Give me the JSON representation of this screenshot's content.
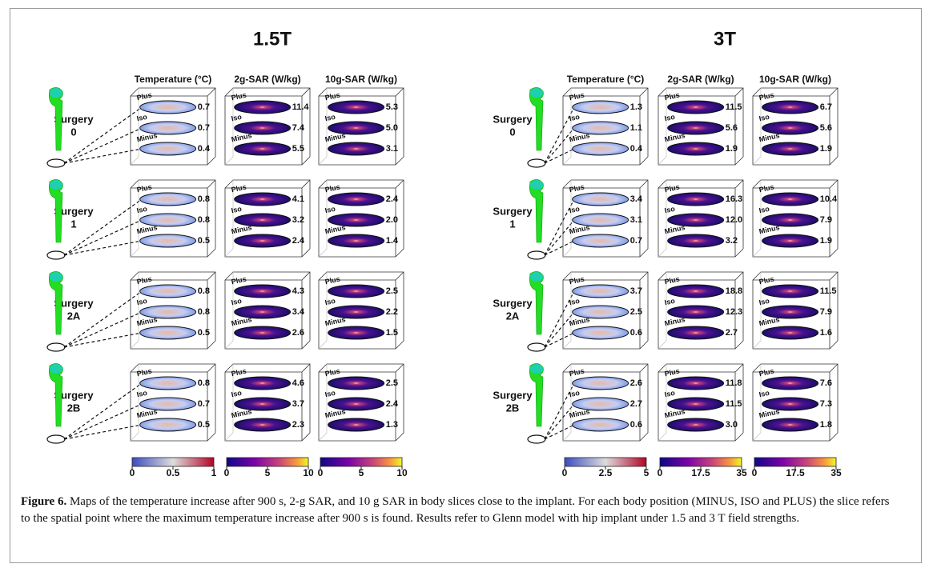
{
  "panels": [
    {
      "title": "1.5T",
      "columns": [
        "Temperature (°C)",
        "2g-SAR (W/kg)",
        "10g-SAR (W/kg)"
      ],
      "rows": [
        {
          "label": "Surgery",
          "id": "0",
          "values": [
            [
              "0.7",
              "0.7",
              "0.4"
            ],
            [
              "11.4",
              "7.4",
              "5.5"
            ],
            [
              "5.3",
              "5.0",
              "3.1"
            ]
          ]
        },
        {
          "label": "Surgery",
          "id": "1",
          "values": [
            [
              "0.8",
              "0.8",
              "0.5"
            ],
            [
              "4.1",
              "3.2",
              "2.4"
            ],
            [
              "2.4",
              "2.0",
              "1.4"
            ]
          ]
        },
        {
          "label": "Surgery",
          "id": "2A",
          "values": [
            [
              "0.8",
              "0.8",
              "0.5"
            ],
            [
              "4.3",
              "3.4",
              "2.6"
            ],
            [
              "2.5",
              "2.2",
              "1.5"
            ]
          ]
        },
        {
          "label": "Surgery",
          "id": "2B",
          "values": [
            [
              "0.8",
              "0.7",
              "0.5"
            ],
            [
              "4.6",
              "3.7",
              "2.3"
            ],
            [
              "2.5",
              "2.4",
              "1.3"
            ]
          ]
        }
      ],
      "colorbars": [
        [
          "0",
          "0.5",
          "1"
        ],
        [
          "0",
          "5",
          "10"
        ],
        [
          "0",
          "5",
          "10"
        ]
      ]
    },
    {
      "title": "3T",
      "columns": [
        "Temperature (°C)",
        "2g-SAR (W/kg)",
        "10g-SAR (W/kg)"
      ],
      "rows": [
        {
          "label": "Surgery",
          "id": "0",
          "values": [
            [
              "1.3",
              "1.1",
              "0.4"
            ],
            [
              "11.5",
              "5.6",
              "1.9"
            ],
            [
              "6.7",
              "5.6",
              "1.9"
            ]
          ]
        },
        {
          "label": "Surgery",
          "id": "1",
          "values": [
            [
              "3.4",
              "3.1",
              "0.7"
            ],
            [
              "16.3",
              "12.0",
              "3.2"
            ],
            [
              "10.4",
              "7.9",
              "1.9"
            ]
          ]
        },
        {
          "label": "Surgery",
          "id": "2A",
          "values": [
            [
              "3.7",
              "2.5",
              "0.6"
            ],
            [
              "18.8",
              "12.3",
              "2.7"
            ],
            [
              "11.5",
              "7.9",
              "1.6"
            ]
          ]
        },
        {
          "label": "Surgery",
          "id": "2B",
          "values": [
            [
              "2.6",
              "2.7",
              "0.6"
            ],
            [
              "11.8",
              "11.5",
              "3.0"
            ],
            [
              "7.6",
              "7.3",
              "1.8"
            ]
          ]
        }
      ],
      "colorbars": [
        [
          "0",
          "2.5",
          "5"
        ],
        [
          "0",
          "17.5",
          "35"
        ],
        [
          "0",
          "17.5",
          "35"
        ]
      ]
    }
  ],
  "slice_labels": [
    "Plus",
    "Iso",
    "Minus"
  ],
  "caption": {
    "label": "Figure 6.",
    "text": "Maps of the temperature increase after 900 s, 2-g SAR, and 10 g SAR in body slices close to the implant. For each body position (MINUS, ISO and PLUS) the slice refers to the spatial point where the maximum temperature increase after 900 s is found. Results refer to Glenn model with hip implant under 1.5 and 3 T field strengths."
  }
}
